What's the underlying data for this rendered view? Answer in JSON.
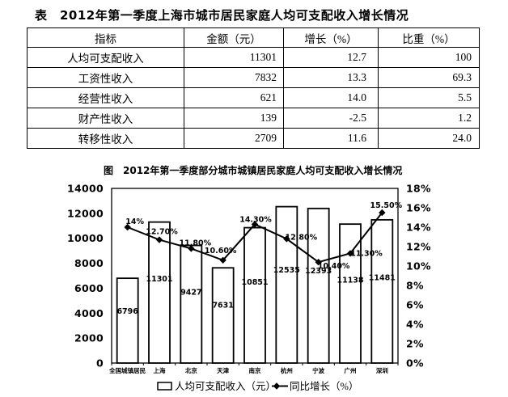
{
  "colors": {
    "background": "#ffffff",
    "ink": "#000000",
    "bar_fill": "#ffffff"
  },
  "table_section": {
    "caption": "表　2012年第一季度上海市城市居民家庭人均可支配收入增长情况",
    "columns": [
      "指标",
      "金额（元）",
      "增长（%）",
      "比重（%）"
    ],
    "rows": [
      {
        "indicator": "人均可支配收入",
        "amount": "11301",
        "growth": "12.7",
        "share": "100"
      },
      {
        "indicator": "工资性收入",
        "amount": "7832",
        "growth": "13.3",
        "share": "69.3"
      },
      {
        "indicator": "经营性收入",
        "amount": "621",
        "growth": "14.0",
        "share": "5.5"
      },
      {
        "indicator": "财产性收入",
        "amount": "139",
        "growth": "-2.5",
        "share": "1.2"
      },
      {
        "indicator": "转移性收入",
        "amount": "2709",
        "growth": "11.6",
        "share": "24.0"
      }
    ]
  },
  "chart_data": {
    "type": "combo",
    "title": "图　2012年第一季度部分城市城镇居民家庭人均可支配收入增长情况",
    "categories": [
      "全国城镇居民",
      "上海",
      "北京",
      "天津",
      "南京",
      "杭州",
      "宁波",
      "广州",
      "深圳"
    ],
    "series": [
      {
        "name": "人均可支配收入（元）",
        "type": "bar",
        "axis": "left",
        "values": [
          6796,
          11301,
          9427,
          7631,
          10851,
          12535,
          12393,
          11138,
          11481
        ]
      },
      {
        "name": "同比增长（%）",
        "type": "line",
        "axis": "right",
        "values": [
          14,
          12.7,
          11.8,
          10.6,
          14.3,
          12.8,
          10.4,
          11.3,
          15.5
        ],
        "point_labels": [
          "14%",
          "12.70%",
          "11.80%",
          "10.60%",
          "14.30%",
          "12.80%",
          "10.40%",
          "11.30%",
          "15.50%"
        ]
      }
    ],
    "left_axis": {
      "min": 0,
      "max": 14000,
      "step": 2000,
      "ticks": [
        "0",
        "2000",
        "4000",
        "6000",
        "8000",
        "10000",
        "12000",
        "14000"
      ]
    },
    "right_axis": {
      "min": 0,
      "max": 18,
      "step": 2,
      "ticks": [
        "0%",
        "2%",
        "4%",
        "6%",
        "8%",
        "10%",
        "12%",
        "14%",
        "16%",
        "18%"
      ]
    },
    "legend": [
      {
        "marker": "bar-swatch",
        "label": "人均可支配收入（元）"
      },
      {
        "marker": "line-diamond",
        "label": "同比增长（%）"
      }
    ],
    "grid": false,
    "bar_fill": "#ffffff",
    "stroke": "#000000"
  }
}
